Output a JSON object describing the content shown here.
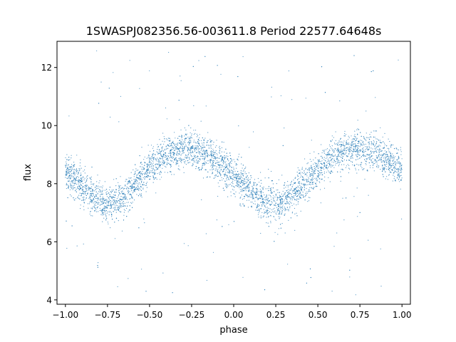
{
  "chart_data": {
    "type": "scatter",
    "title": "1SWASPJ082356.56-003611.8 Period 22577.64648s",
    "xlabel": "phase",
    "ylabel": "flux",
    "xlim": [
      -1.05,
      1.05
    ],
    "ylim": [
      3.85,
      12.9
    ],
    "xticks": [
      -1.0,
      -0.75,
      -0.5,
      -0.25,
      0.0,
      0.25,
      0.5,
      0.75,
      1.0
    ],
    "xtick_labels": [
      "−1.00",
      "−0.75",
      "−0.50",
      "−0.25",
      "0.00",
      "0.25",
      "0.50",
      "0.75",
      "1.00"
    ],
    "yticks": [
      4,
      6,
      8,
      10,
      12
    ],
    "ytick_labels": [
      "4",
      "6",
      "8",
      "10",
      "12"
    ],
    "grid": false,
    "marker_color": "#1f77b4",
    "series": [
      {
        "x": [
          -1.0,
          -0.95,
          -0.9,
          -0.85,
          -0.8,
          -0.75,
          -0.7,
          -0.65,
          -0.6,
          -0.55,
          -0.5,
          -0.45,
          -0.4,
          -0.35,
          -0.3,
          -0.25,
          -0.2,
          -0.15,
          -0.1,
          -0.05,
          0.0,
          0.05,
          0.1,
          0.15,
          0.2,
          0.25,
          0.3,
          0.35,
          0.4,
          0.45,
          0.5,
          0.55,
          0.6,
          0.65,
          0.7,
          0.75,
          0.8,
          0.85,
          0.9,
          0.95,
          1.0
        ],
        "y": [
          8.4,
          8.2,
          7.9,
          7.6,
          7.4,
          7.3,
          7.4,
          7.6,
          7.9,
          8.2,
          8.5,
          8.75,
          8.95,
          9.1,
          9.2,
          9.2,
          9.1,
          8.95,
          8.75,
          8.5,
          8.3,
          8.0,
          7.7,
          7.45,
          7.3,
          7.3,
          7.4,
          7.6,
          7.9,
          8.2,
          8.5,
          8.75,
          8.95,
          9.1,
          9.2,
          9.2,
          9.1,
          9.0,
          8.85,
          8.65,
          8.45
        ]
      }
    ]
  }
}
